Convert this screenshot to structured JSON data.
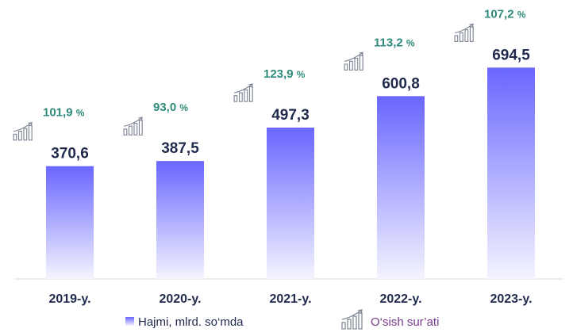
{
  "chart_data": {
    "type": "bar",
    "categories": [
      "2019-y.",
      "2020-y.",
      "2021-y.",
      "2022-y.",
      "2023-y."
    ],
    "series": [
      {
        "name": "Hajmi, mlrd. so‘mda",
        "values": [
          370.6,
          387.5,
          497.3,
          600.8,
          694.5
        ],
        "labels": [
          "370,6",
          "387,5",
          "497,3",
          "600,8",
          "694,5"
        ]
      }
    ],
    "growth": {
      "name": "O‘sish sur’ati",
      "values": [
        101.9,
        93.0,
        123.9,
        113.2,
        107.2
      ],
      "labels": [
        "101,9",
        "93,0",
        "123,9",
        "113,2",
        "107,2"
      ],
      "unit": "%"
    },
    "ylim": [
      0,
      750
    ],
    "grid": false,
    "legend": "bottom",
    "colors": {
      "bar_top": "#6a66ff",
      "bar_bottom": "#f4f4ff",
      "value_text": "#1f2a4d",
      "growth_text": "#2e8b7a",
      "legend_growth_text": "#7a3b8c",
      "icon": "#7a8190"
    }
  }
}
